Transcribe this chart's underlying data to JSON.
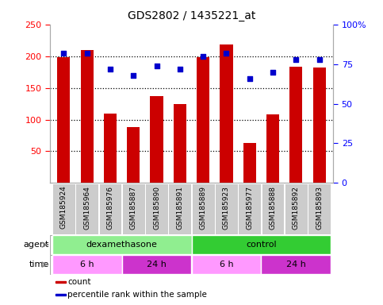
{
  "title": "GDS2802 / 1435221_at",
  "samples": [
    "GSM185924",
    "GSM185964",
    "GSM185976",
    "GSM185887",
    "GSM185890",
    "GSM185891",
    "GSM185889",
    "GSM185923",
    "GSM185977",
    "GSM185888",
    "GSM185892",
    "GSM185893"
  ],
  "counts": [
    198,
    210,
    110,
    88,
    137,
    125,
    198,
    218,
    63,
    108,
    183,
    182
  ],
  "percentile_ranks": [
    82,
    82,
    72,
    68,
    74,
    72,
    80,
    82,
    66,
    70,
    78,
    78
  ],
  "ylim_left": [
    0,
    250
  ],
  "ylim_right": [
    0,
    100
  ],
  "yticks_left": [
    50,
    100,
    150,
    200,
    250
  ],
  "yticks_right": [
    0,
    25,
    50,
    75,
    100
  ],
  "bar_color": "#CC0000",
  "dot_color": "#0000CC",
  "agent_groups": [
    {
      "label": "dexamethasone",
      "start": 0,
      "end": 6,
      "color": "#90EE90"
    },
    {
      "label": "control",
      "start": 6,
      "end": 12,
      "color": "#33CC33"
    }
  ],
  "time_groups": [
    {
      "label": "6 h",
      "start": 0,
      "end": 3,
      "color": "#FF99FF"
    },
    {
      "label": "24 h",
      "start": 3,
      "end": 6,
      "color": "#CC33CC"
    },
    {
      "label": "6 h",
      "start": 6,
      "end": 9,
      "color": "#FF99FF"
    },
    {
      "label": "24 h",
      "start": 9,
      "end": 12,
      "color": "#CC33CC"
    }
  ],
  "tick_label_bg": "#CCCCCC",
  "legend_items": [
    {
      "color": "#CC0000",
      "label": "count"
    },
    {
      "color": "#0000CC",
      "label": "percentile rank within the sample"
    }
  ],
  "gridline_yticks": [
    50,
    100,
    150,
    200
  ],
  "bar_width": 0.55
}
